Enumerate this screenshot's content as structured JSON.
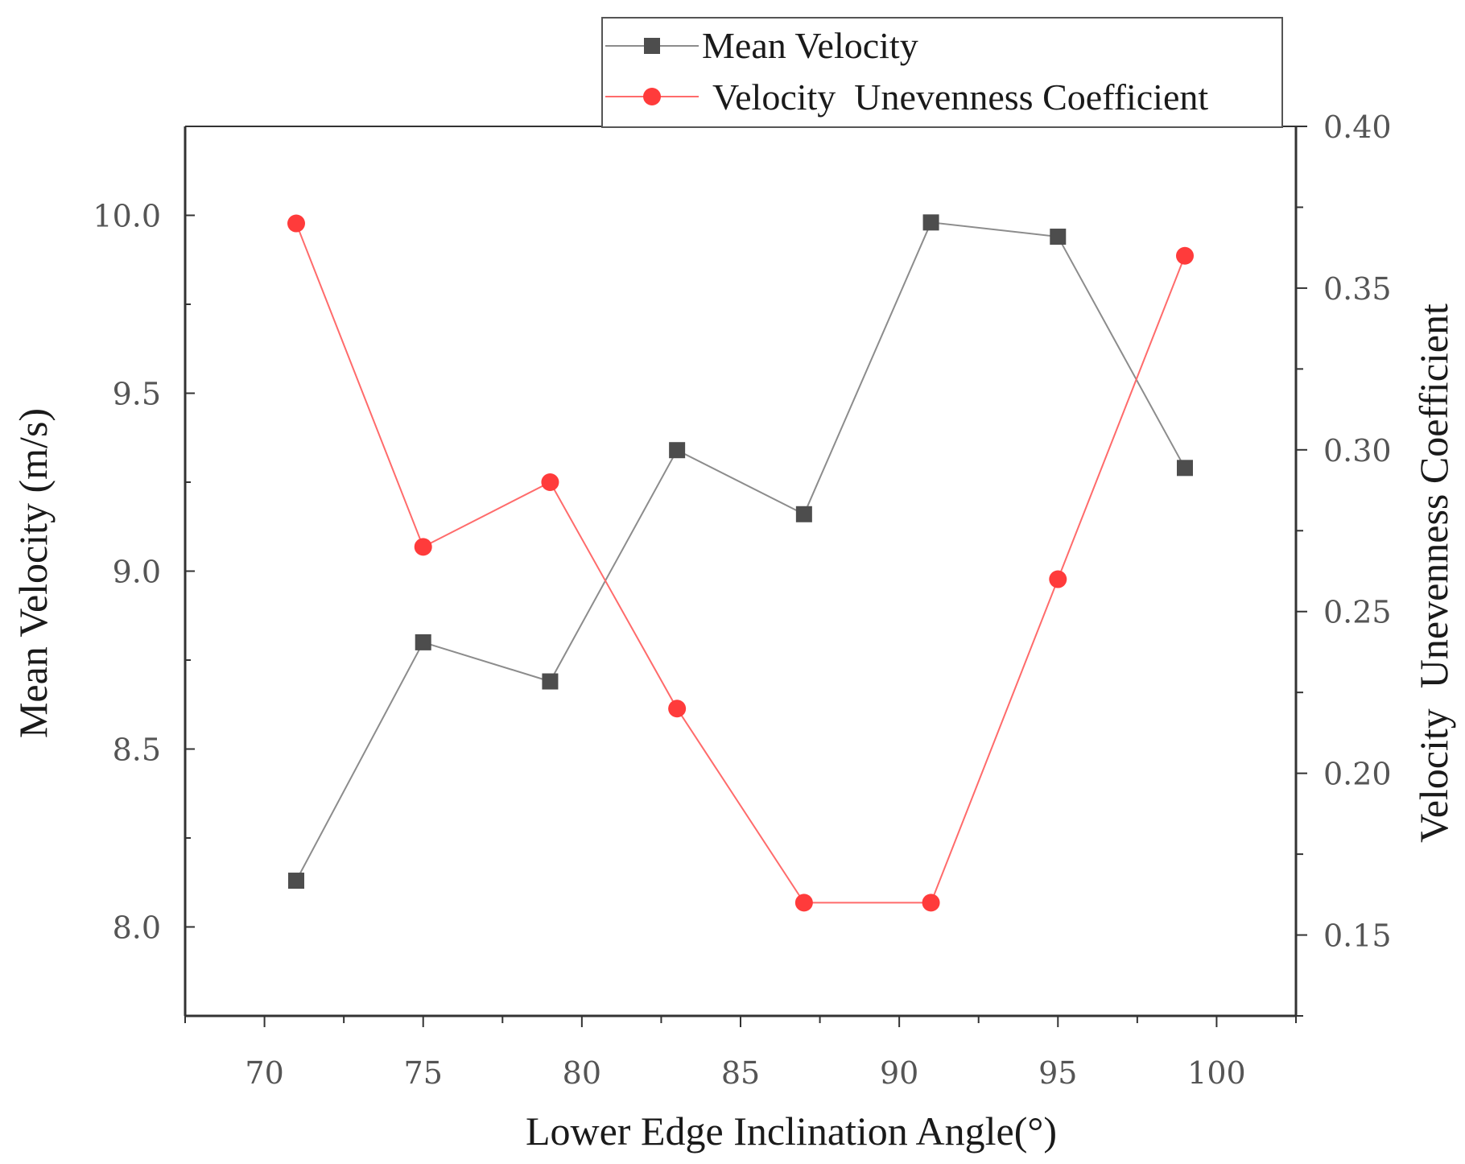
{
  "chart_data": {
    "type": "line",
    "title": "",
    "xlabel": "Lower Edge Inclination Angle(°)",
    "ylabel_left": "Mean Velocity (m/s)",
    "ylabel_right": "Velocity  Unevenness Coefficient",
    "xlim": [
      67.5,
      102.5
    ],
    "ylim_left": [
      7.75,
      10.25
    ],
    "ylim_right": [
      0.125,
      0.4
    ],
    "x_ticks": [
      70,
      75,
      80,
      85,
      90,
      95,
      100
    ],
    "x_tick_labels": [
      "70",
      "75",
      "80",
      "85",
      "90",
      "95",
      "100"
    ],
    "y_left_ticks": [
      8.0,
      8.5,
      9.0,
      9.5,
      10.0
    ],
    "y_left_tick_labels": [
      "8.0",
      "8.5",
      "9.0",
      "9.5",
      "10.0"
    ],
    "y_right_ticks": [
      0.15,
      0.2,
      0.25,
      0.3,
      0.35,
      0.4
    ],
    "y_right_tick_labels": [
      "0.15",
      "0.20",
      "0.25",
      "0.30",
      "0.35",
      "0.40"
    ],
    "x": [
      71,
      75,
      79,
      83,
      87,
      91,
      95,
      99
    ],
    "series": [
      {
        "name": "Mean Velocity",
        "axis": "left",
        "marker": "square",
        "color": "#4d4d4d",
        "line_color": "#8c8c8c",
        "values": [
          8.13,
          8.8,
          8.69,
          9.34,
          9.16,
          9.98,
          9.94,
          9.29
        ]
      },
      {
        "name": "Velocity  Unevenness Coefficient",
        "axis": "right",
        "marker": "circle",
        "color": "#ff3b3b",
        "line_color": "#ff6b6b",
        "values": [
          0.37,
          0.27,
          0.29,
          0.22,
          0.16,
          0.16,
          0.26,
          0.36
        ]
      }
    ],
    "legend_position": "top-right",
    "grid": false
  }
}
